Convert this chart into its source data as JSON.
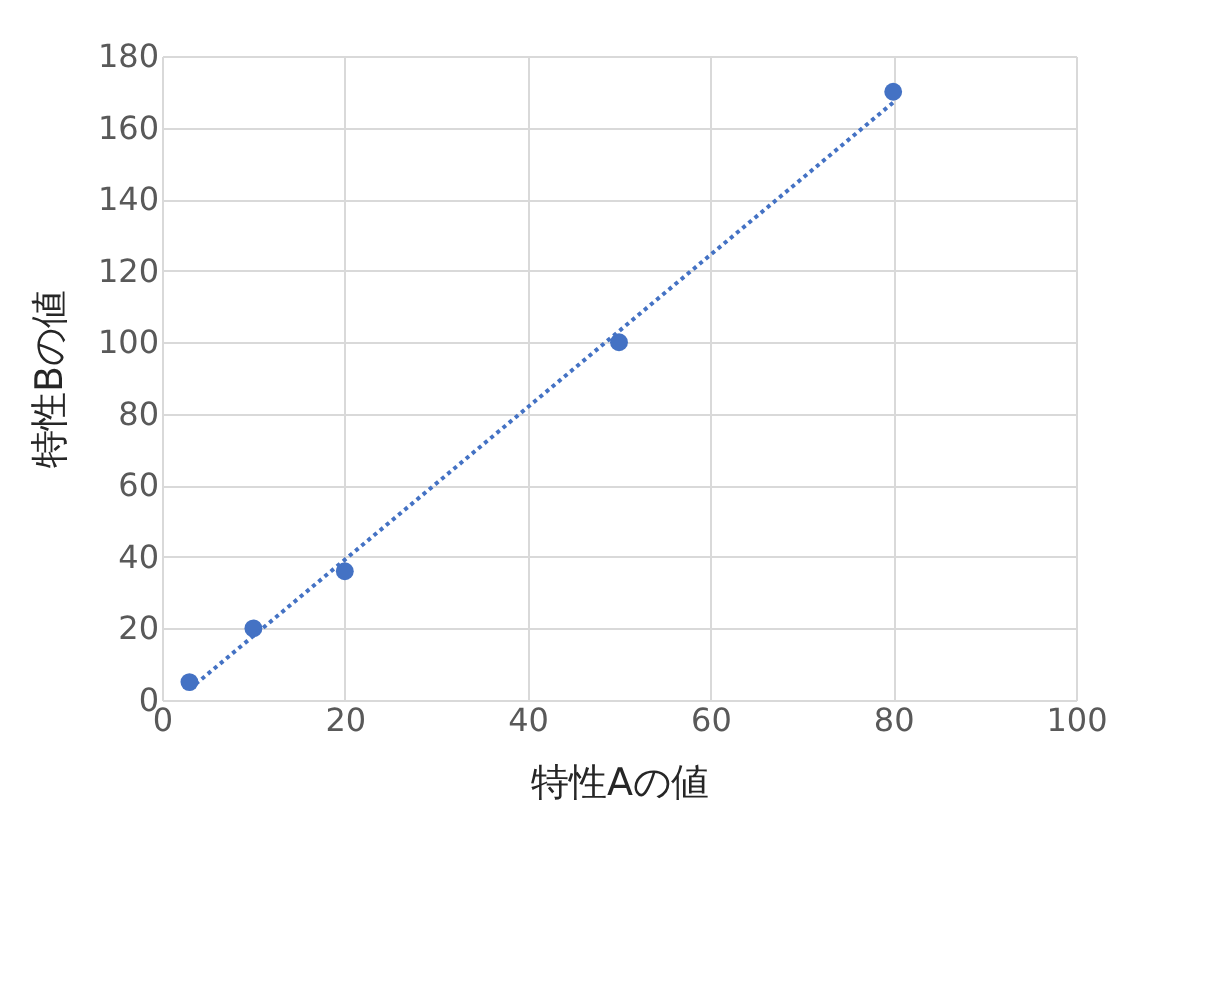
{
  "chart_data": {
    "type": "scatter",
    "xlabel": "特性Aの値",
    "ylabel": "特性Bの値",
    "x": [
      3,
      10,
      20,
      50,
      80
    ],
    "series": [
      {
        "type": "scatter",
        "color": "#4472c4",
        "values": [
          5,
          20,
          36,
          100,
          170
        ],
        "marker": "circle"
      },
      {
        "type": "line",
        "color": "#4472c4",
        "x": [
          3,
          80
        ],
        "values": [
          3,
          167
        ],
        "line_style": "dotted"
      }
    ],
    "xlim": [
      0,
      100
    ],
    "xticks": [
      0,
      20,
      40,
      60,
      80,
      100
    ],
    "ylim": [
      0,
      180
    ],
    "yticks": [
      0,
      20,
      40,
      60,
      80,
      100,
      120,
      140,
      160,
      180
    ],
    "grid": true,
    "legend": false
  }
}
